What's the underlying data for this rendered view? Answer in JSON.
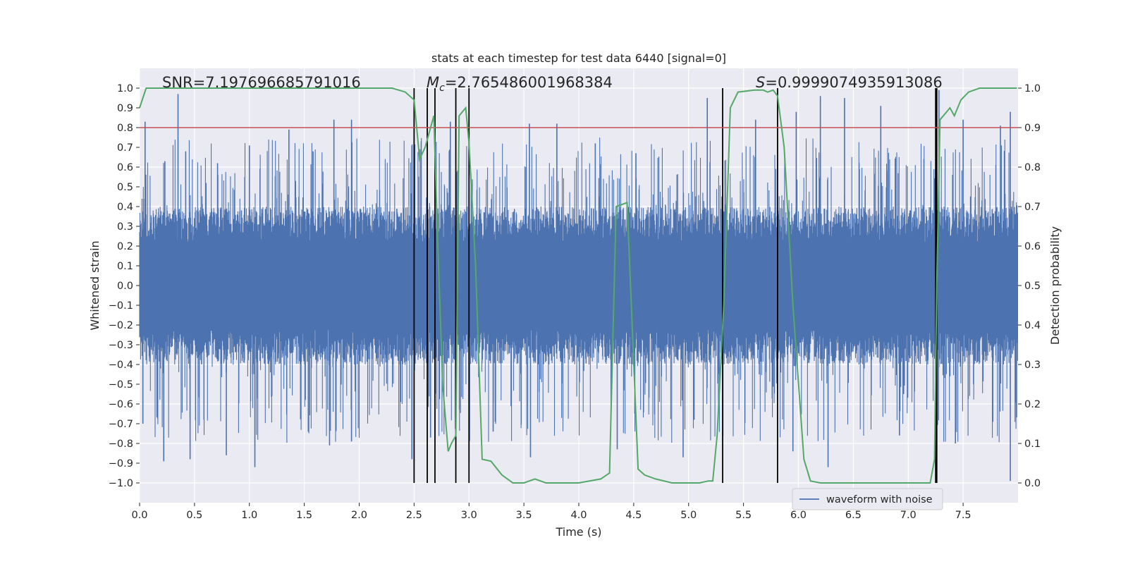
{
  "chart_data": {
    "type": "line",
    "title": "stats at each timestep for test data 6440 [signal=0]",
    "xlabel": "Time (s)",
    "ylabel": "Whitened strain",
    "y2label": "Detection probability",
    "xlim": [
      0.0,
      8.0
    ],
    "ylim": [
      -1.1,
      1.1
    ],
    "y2lim": [
      -0.05,
      1.05
    ],
    "xticks": [
      0.0,
      0.5,
      1.0,
      1.5,
      2.0,
      2.5,
      3.0,
      3.5,
      4.0,
      4.5,
      5.0,
      5.5,
      6.0,
      6.5,
      7.0,
      7.5
    ],
    "xtick_labels": [
      "0.0",
      "0.5",
      "1.0",
      "1.5",
      "2.0",
      "2.5",
      "3.0",
      "3.5",
      "4.0",
      "4.5",
      "5.0",
      "5.5",
      "6.0",
      "6.5",
      "7.0",
      "7.5"
    ],
    "yticks": [
      1.0,
      0.9,
      0.8,
      0.7,
      0.6,
      0.5,
      0.4,
      0.3,
      0.2,
      0.1,
      0.0,
      -0.1,
      -0.2,
      -0.3,
      -0.4,
      -0.5,
      -0.6,
      -0.7,
      -0.8,
      -0.9,
      -1.0
    ],
    "ytick_labels": [
      "1.0",
      "0.9",
      "0.8",
      "0.7",
      "0.6",
      "0.5",
      "0.4",
      "0.3",
      "0.2",
      "0.1",
      "0.0",
      "−0.1",
      "−0.2",
      "−0.3",
      "−0.4",
      "−0.5",
      "−0.6",
      "−0.7",
      "−0.8",
      "−0.9",
      "−1.0"
    ],
    "y2ticks": [
      0.0,
      0.1,
      0.2,
      0.3,
      0.4,
      0.5,
      0.6,
      0.7,
      0.8,
      0.9,
      1.0
    ],
    "y2tick_labels": [
      "0.0",
      "0.1",
      "0.2",
      "0.3",
      "0.4",
      "0.5",
      "0.6",
      "0.7",
      "0.8",
      "0.9",
      "1.0"
    ],
    "annotations": {
      "snr": "SNR=7.197696685791016",
      "mc_symbol": "M",
      "mc_sub": "c",
      "mc_value": "=2.765486001968384",
      "s_symbol": "S",
      "s_value": "=0.9999074935913086"
    },
    "threshold": 0.9,
    "detection_times": [
      2.5,
      2.62,
      2.69,
      2.88,
      3.0,
      5.31,
      5.81,
      7.25,
      7.26
    ],
    "series": [
      {
        "name": "waveform with noise",
        "color": "#4c72b0",
        "kind": "noise",
        "bulk_amplitude": 0.4,
        "spike_peaks_up": [
          {
            "x": 0.05,
            "y": 0.83
          },
          {
            "x": 0.23,
            "y": 0.63
          },
          {
            "x": 0.35,
            "y": 0.97
          },
          {
            "x": 0.42,
            "y": 0.68
          },
          {
            "x": 0.71,
            "y": 0.62
          },
          {
            "x": 1.0,
            "y": 0.71
          },
          {
            "x": 1.36,
            "y": 0.79
          },
          {
            "x": 1.58,
            "y": 0.68
          },
          {
            "x": 1.77,
            "y": 0.84
          },
          {
            "x": 1.93,
            "y": 0.84
          },
          {
            "x": 2.48,
            "y": 0.71
          },
          {
            "x": 2.83,
            "y": 0.83
          },
          {
            "x": 3.55,
            "y": 0.82
          },
          {
            "x": 3.8,
            "y": 0.82
          },
          {
            "x": 4.15,
            "y": 0.72
          },
          {
            "x": 4.52,
            "y": 0.67
          },
          {
            "x": 5.17,
            "y": 0.95
          },
          {
            "x": 5.61,
            "y": 0.84
          },
          {
            "x": 5.98,
            "y": 0.88
          },
          {
            "x": 6.2,
            "y": 0.96
          },
          {
            "x": 6.42,
            "y": 0.95
          },
          {
            "x": 6.75,
            "y": 0.91
          },
          {
            "x": 7.28,
            "y": 0.99
          },
          {
            "x": 7.5,
            "y": 0.84
          },
          {
            "x": 7.84,
            "y": 0.81
          },
          {
            "x": 7.93,
            "y": 0.88
          }
        ],
        "spike_peaks_down": [
          {
            "x": 0.03,
            "y": -0.7
          },
          {
            "x": 0.22,
            "y": -0.89
          },
          {
            "x": 0.46,
            "y": -0.88
          },
          {
            "x": 0.79,
            "y": -0.86
          },
          {
            "x": 1.05,
            "y": -0.92
          },
          {
            "x": 1.73,
            "y": -0.81
          },
          {
            "x": 1.93,
            "y": -0.79
          },
          {
            "x": 2.48,
            "y": -0.88
          },
          {
            "x": 2.65,
            "y": -0.77
          },
          {
            "x": 3.0,
            "y": -0.88
          },
          {
            "x": 3.22,
            "y": -0.74
          },
          {
            "x": 3.56,
            "y": -0.87
          },
          {
            "x": 4.35,
            "y": -0.83
          },
          {
            "x": 4.95,
            "y": -0.87
          },
          {
            "x": 5.05,
            "y": -0.68
          },
          {
            "x": 5.95,
            "y": -0.84
          },
          {
            "x": 6.27,
            "y": -0.92
          },
          {
            "x": 6.92,
            "y": -0.76
          },
          {
            "x": 7.43,
            "y": -0.8
          },
          {
            "x": 7.77,
            "y": -0.69
          },
          {
            "x": 7.93,
            "y": -0.99
          }
        ]
      },
      {
        "name": "detection probability",
        "color": "#55a868",
        "axis": "right",
        "x": [
          0.0,
          0.06,
          0.5,
          1.0,
          1.5,
          2.0,
          2.3,
          2.42,
          2.5,
          2.55,
          2.6,
          2.68,
          2.71,
          2.76,
          2.81,
          2.84,
          2.88,
          2.91,
          2.97,
          3.0,
          3.06,
          3.12,
          3.2,
          3.3,
          3.4,
          3.5,
          3.6,
          3.7,
          3.85,
          4.0,
          4.2,
          4.28,
          4.34,
          4.44,
          4.54,
          4.6,
          4.7,
          4.85,
          5.0,
          5.1,
          5.18,
          5.22,
          5.26,
          5.32,
          5.38,
          5.45,
          5.6,
          5.68,
          5.72,
          5.77,
          5.81,
          5.87,
          5.95,
          6.05,
          6.11,
          6.2,
          6.5,
          7.0,
          7.2,
          7.24,
          7.26,
          7.29,
          7.35,
          7.38,
          7.42,
          7.48,
          7.55,
          7.65,
          7.75,
          7.85,
          7.92,
          7.99
        ],
        "y": [
          0.95,
          1.0,
          1.0,
          1.0,
          1.0,
          1.0,
          1.0,
          0.99,
          0.97,
          0.82,
          0.85,
          0.93,
          0.65,
          0.25,
          0.08,
          0.1,
          0.12,
          0.93,
          0.95,
          0.86,
          0.55,
          0.06,
          0.055,
          0.02,
          0.0,
          0.0,
          0.01,
          0.0,
          0.0,
          0.0,
          0.01,
          0.025,
          0.7,
          0.71,
          0.035,
          0.02,
          0.01,
          0.0,
          0.0,
          0.0,
          0.005,
          0.005,
          0.12,
          0.45,
          0.95,
          0.99,
          0.995,
          0.995,
          0.99,
          0.995,
          0.98,
          0.85,
          0.45,
          0.06,
          0.005,
          0.0,
          0.0,
          0.0,
          0.0,
          0.06,
          0.5,
          0.92,
          0.94,
          0.95,
          0.93,
          0.97,
          0.99,
          1.0,
          1.0,
          1.0,
          1.0,
          1.0
        ]
      }
    ],
    "legend": {
      "label": "waveform with noise",
      "placement": "bottom-right"
    },
    "grid": true
  }
}
